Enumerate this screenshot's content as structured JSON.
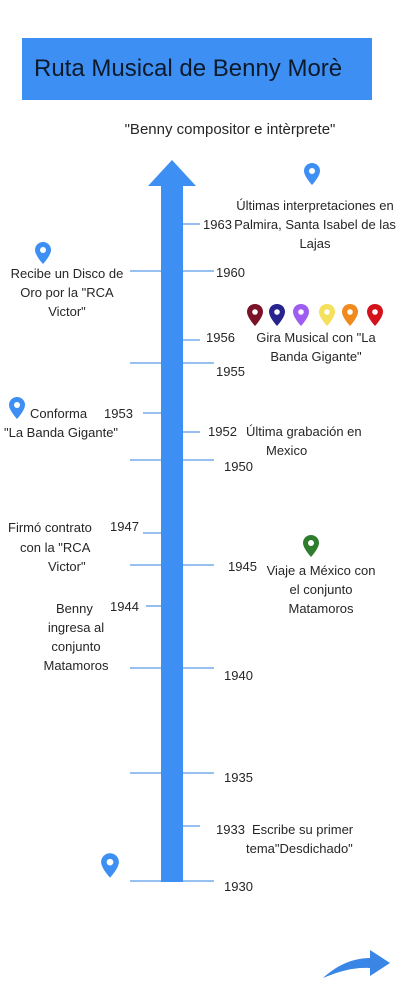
{
  "title": "Ruta Musical de Benny Morè",
  "subtitle": "\"Benny compositor e intèrprete\"",
  "colors": {
    "title_background": "#3d8ff4",
    "axis": "#3d8ff4",
    "tick": "#5a9ae8",
    "pin_blue": "#3d8ff4",
    "pin_green": "#2e7d2e",
    "tour_pins": [
      "#7b1227",
      "#27238f",
      "#9e5cf0",
      "#f4e05a",
      "#f08a1d",
      "#d3121b"
    ]
  },
  "timeline": {
    "axis_years": [
      "1930",
      "1935",
      "1940",
      "1945",
      "1950",
      "1955",
      "1960"
    ],
    "events": {
      "e1963": {
        "year": "1963",
        "text": "Últimas interpretaciones en Palmira, Santa Isabel de las Lajas"
      },
      "e1960": {
        "text": "Recibe un Disco de Oro por la \"RCA Victor\""
      },
      "e1956": {
        "year": "1956",
        "text": "Gira Musical con \"La Banda Gigante\""
      },
      "e1953": {
        "year": "1953",
        "text_line1": "Conforma",
        "text_line2": "\"La Banda Gigante\""
      },
      "e1952": {
        "year": "1952",
        "text_line1": "Última grabación en",
        "text_line2": "Mexico"
      },
      "e1947": {
        "year": "1947",
        "text_line1": "Firmó contrato",
        "text_line2": "con la \"RCA",
        "text_line3": "Victor\""
      },
      "e1945": {
        "text": "Viaje  a México con el conjunto Matamoros"
      },
      "e1944": {
        "year": "1944",
        "text_line1": "Benny",
        "text_line2": "ingresa al conjunto Matamoros"
      },
      "e1933": {
        "year": "1933",
        "text_line1": "Escribe su primer",
        "text_line2": "tema\"Desdichado\""
      }
    }
  },
  "icons": {
    "location_pin": "map-marker-icon",
    "next_arrow": "curved-arrow-icon"
  }
}
